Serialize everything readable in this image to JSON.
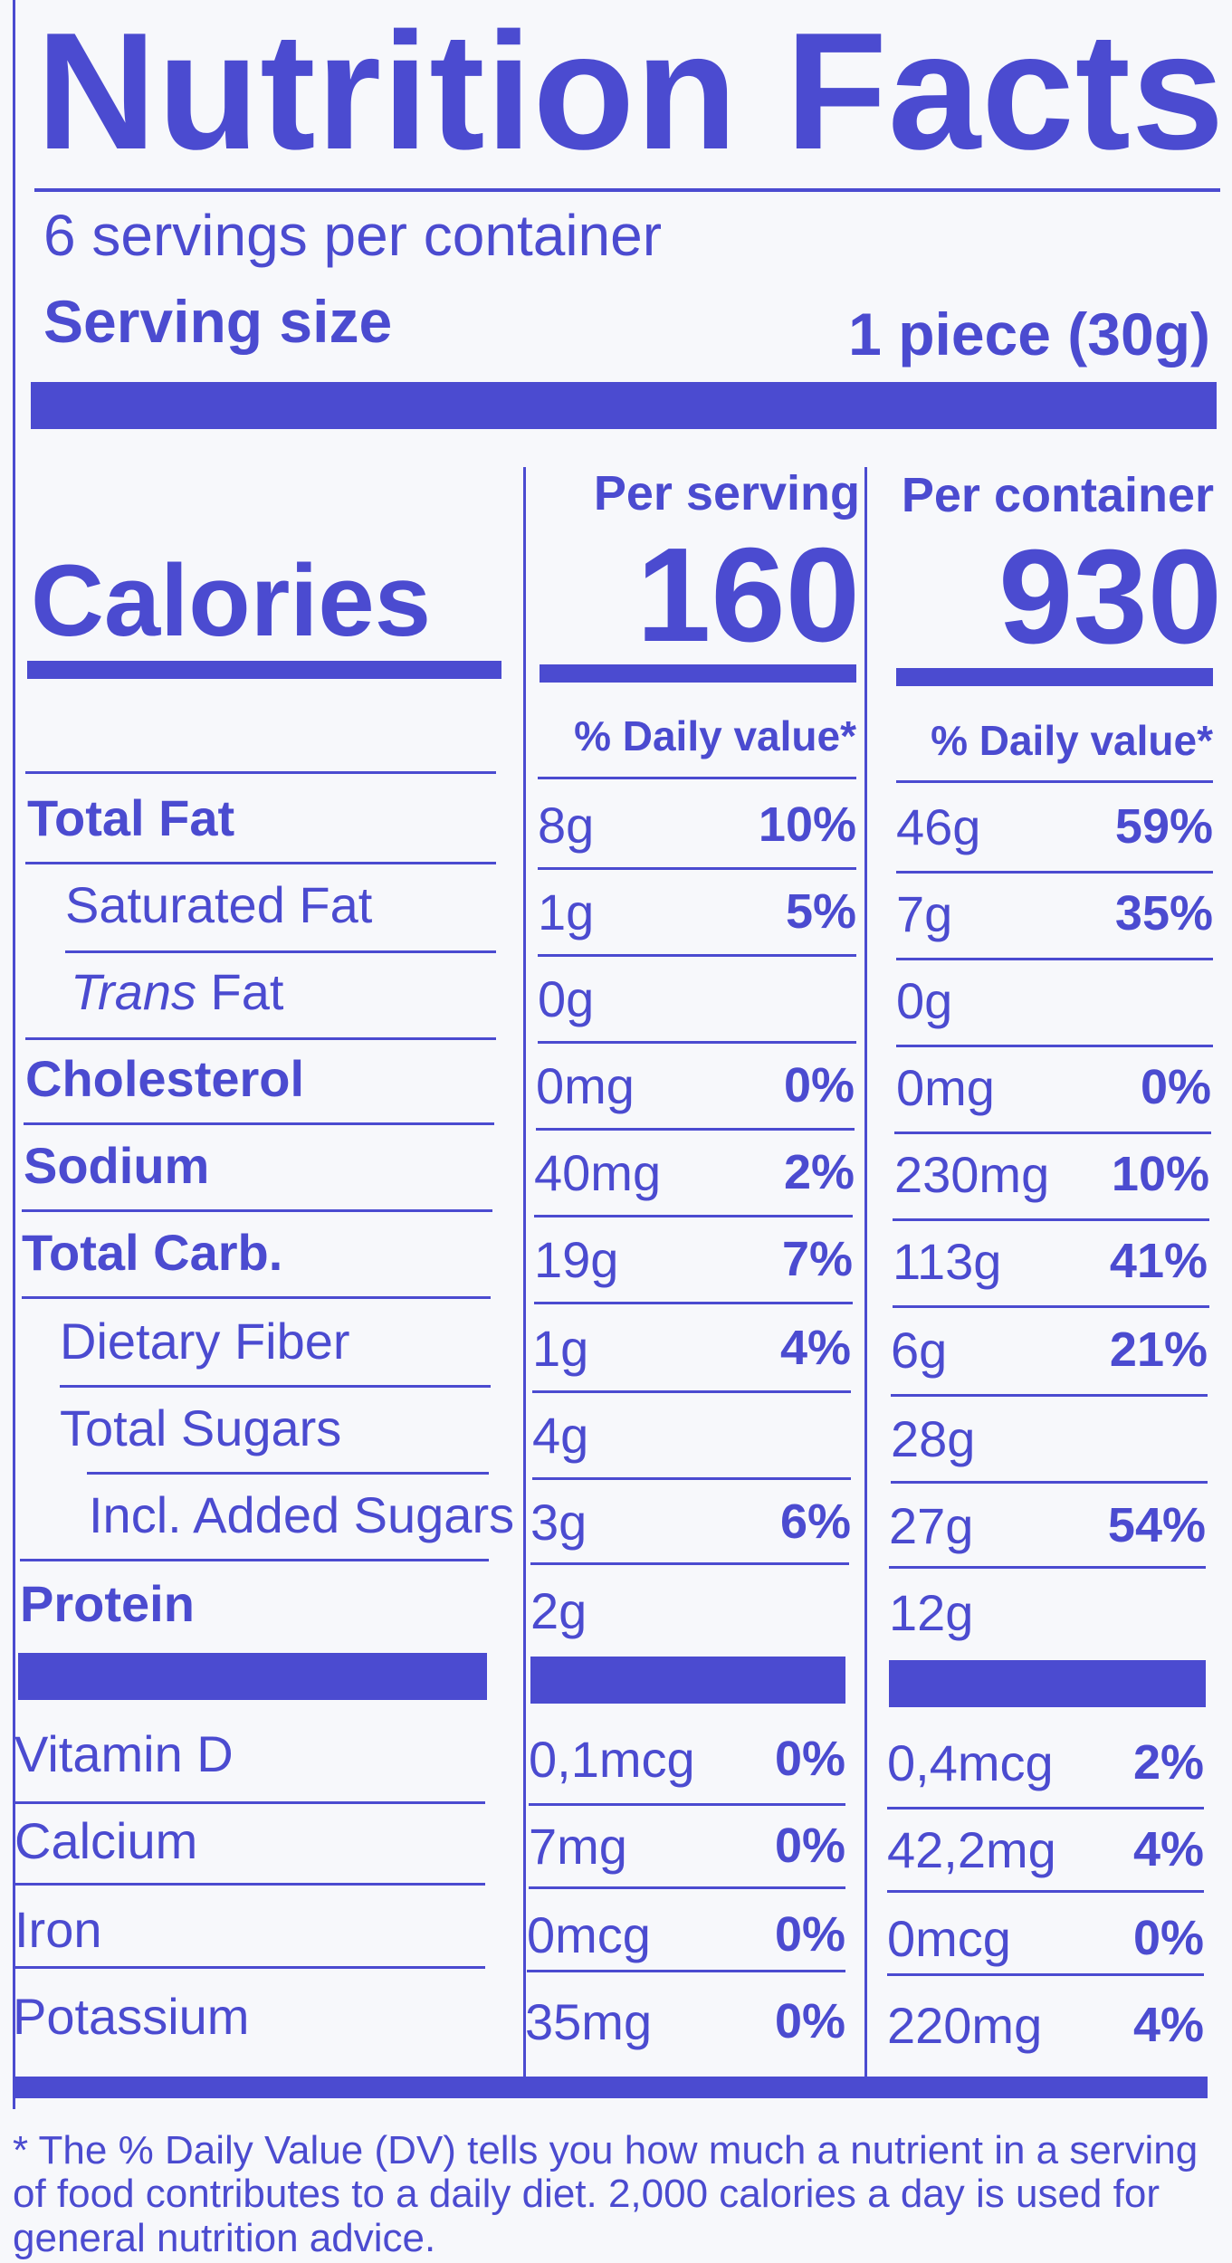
{
  "title": "Nutrition Facts",
  "servings_per_container": "6 servings per container",
  "serving_size_label": "Serving size",
  "serving_size_value": "1 piece (30g)",
  "calories_label": "Calories",
  "columns": {
    "per_serving_label": "Per serving",
    "per_container_label": "Per container",
    "calories_per_serving": "160",
    "calories_per_container": "930",
    "daily_value_header": "% Daily value*"
  },
  "nutrients": [
    {
      "name": "Total Fat",
      "serving_amount": "8g",
      "serving_dv": "10%",
      "container_amount": "46g",
      "container_dv": "59%"
    },
    {
      "name": "Saturated Fat",
      "serving_amount": "1g",
      "serving_dv": "5%",
      "container_amount": "7g",
      "container_dv": "35%"
    },
    {
      "name_italic": "Trans",
      "name_rest": " Fat",
      "serving_amount": "0g",
      "serving_dv": "",
      "container_amount": "0g",
      "container_dv": ""
    },
    {
      "name": "Cholesterol",
      "serving_amount": "0mg",
      "serving_dv": "0%",
      "container_amount": "0mg",
      "container_dv": "0%"
    },
    {
      "name": "Sodium",
      "serving_amount": "40mg",
      "serving_dv": "2%",
      "container_amount": "230mg",
      "container_dv": "10%"
    },
    {
      "name": "Total Carb.",
      "serving_amount": "19g",
      "serving_dv": "7%",
      "container_amount": "113g",
      "container_dv": "41%"
    },
    {
      "name": "Dietary Fiber",
      "serving_amount": "1g",
      "serving_dv": "4%",
      "container_amount": "6g",
      "container_dv": "21%"
    },
    {
      "name": "Total Sugars",
      "serving_amount": "4g",
      "serving_dv": "",
      "container_amount": "28g",
      "container_dv": ""
    },
    {
      "name": "Incl. Added Sugars",
      "serving_amount": "3g",
      "serving_dv": "6%",
      "container_amount": "27g",
      "container_dv": "54%"
    },
    {
      "name": "Protein",
      "serving_amount": "2g",
      "serving_dv": "",
      "container_amount": "12g",
      "container_dv": ""
    }
  ],
  "vitamins": [
    {
      "name": "Vitamin D",
      "serving_amount": "0,1mcg",
      "serving_dv": "0%",
      "container_amount": "0,4mcg",
      "container_dv": "2%"
    },
    {
      "name": "Calcium",
      "serving_amount": "7mg",
      "serving_dv": "0%",
      "container_amount": "42,2mg",
      "container_dv": "4%"
    },
    {
      "name": "Iron",
      "serving_amount": "0mcg",
      "serving_dv": "0%",
      "container_amount": "0mcg",
      "container_dv": "0%"
    },
    {
      "name": "Potassium",
      "serving_amount": "35mg",
      "serving_dv": "0%",
      "container_amount": "220mg",
      "container_dv": "4%"
    }
  ],
  "footnote": "* The % Daily Value (DV) tells you how much a nutrient in a serving of food contributes to a daily diet. 2,000 calories a day is used for general nutrition advice.",
  "colors": {
    "ink": "#4b4bd0",
    "background": "#f7f8fb"
  }
}
